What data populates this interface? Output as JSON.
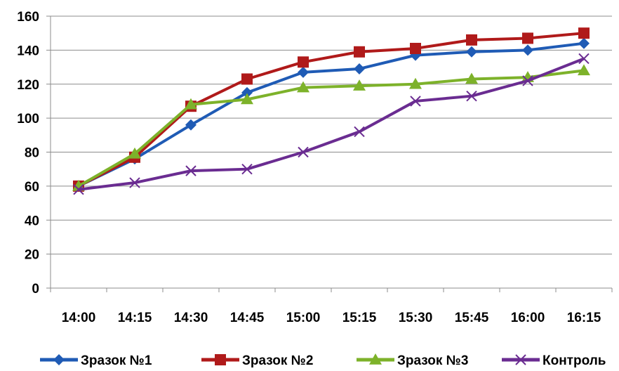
{
  "chart_data": {
    "type": "line",
    "categories": [
      "14:00",
      "14:15",
      "14:30",
      "14:45",
      "15:00",
      "15:15",
      "15:30",
      "15:45",
      "16:00",
      "16:15"
    ],
    "ylim": [
      0,
      160
    ],
    "yticks": [
      0,
      20,
      40,
      60,
      80,
      100,
      120,
      140,
      160
    ],
    "grid": true,
    "legend_position": "bottom",
    "series": [
      {
        "name": "Зразок №1",
        "color": "#1f5bb5",
        "marker": "diamond",
        "values": [
          60,
          76,
          96,
          115,
          127,
          129,
          137,
          139,
          140,
          144
        ]
      },
      {
        "name": "Зразок №2",
        "color": "#b01a1a",
        "marker": "square",
        "values": [
          60,
          77,
          107,
          123,
          133,
          139,
          141,
          146,
          147,
          150
        ]
      },
      {
        "name": "Зразок №3",
        "color": "#7db22a",
        "marker": "triangle",
        "values": [
          60,
          79,
          108,
          111,
          118,
          119,
          120,
          123,
          124,
          128
        ]
      },
      {
        "name": "Контроль",
        "color": "#6a2c91",
        "marker": "x",
        "values": [
          58,
          62,
          69,
          70,
          80,
          92,
          110,
          113,
          122,
          135
        ]
      }
    ]
  }
}
